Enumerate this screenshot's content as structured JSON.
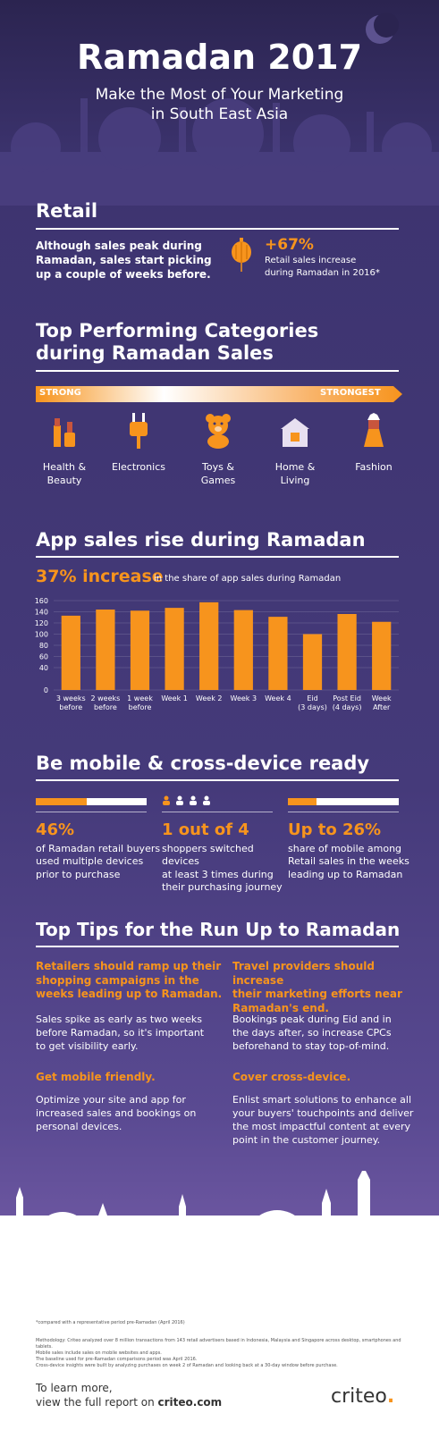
{
  "header": {
    "title": "Ramadan 2017",
    "subtitle_line1": "Make the Most of Your Marketing",
    "subtitle_line2": "in South East Asia"
  },
  "retail": {
    "title": "Retail",
    "text_line1": "Although sales peak during",
    "text_line2": "Ramadan, sales start picking",
    "text_line3": "up a couple of weeks before.",
    "stat": "+67%",
    "stat_line1": "Retail sales increase",
    "stat_line2": "during Ramadan in 2016*"
  },
  "categories": {
    "title_line1": "Top Performing Categories",
    "title_line2": "during Ramadan Sales",
    "scale_left": "STRONG",
    "scale_right": "STRONGEST",
    "items": [
      {
        "line1": "Health &",
        "line2": "Beauty",
        "icon": "lipstick-icon"
      },
      {
        "line1": "Electronics",
        "line2": "",
        "icon": "plug-icon"
      },
      {
        "line1": "Toys &",
        "line2": "Games",
        "icon": "teddy-bear-icon"
      },
      {
        "line1": "Home &",
        "line2": "Living",
        "icon": "house-icon"
      },
      {
        "line1": "Fashion",
        "line2": "",
        "icon": "dress-icon"
      }
    ]
  },
  "app_sales": {
    "title": "App sales rise during Ramadan",
    "highlight": "37% increase",
    "highlight_note": "in the share of app sales during Ramadan"
  },
  "chart_data": {
    "type": "bar",
    "title": "",
    "xlabel": "",
    "ylabel": "",
    "categories": [
      [
        "3 weeks",
        "before"
      ],
      [
        "2 weeks",
        "before"
      ],
      [
        "1 week",
        "before"
      ],
      [
        "Week 1",
        ""
      ],
      [
        "Week 2",
        ""
      ],
      [
        "Week 3",
        ""
      ],
      [
        "Week 4",
        ""
      ],
      [
        "Eid",
        "(3 days)"
      ],
      [
        "Post Eid",
        "(4 days)"
      ],
      [
        "Week",
        "After"
      ]
    ],
    "values": [
      133,
      144,
      142,
      147,
      157,
      143,
      131,
      100,
      136,
      122
    ],
    "yticks": [
      0,
      40,
      60,
      80,
      100,
      120,
      140,
      160
    ],
    "ylim": [
      0,
      160
    ],
    "color": "#f7941d"
  },
  "mobile": {
    "title": "Be mobile & cross-device ready",
    "stats": [
      {
        "big": "46%",
        "line1": "of Ramadan retail buyers",
        "line2": "used multiple devices",
        "line3": "prior to purchase"
      },
      {
        "big": "1 out of 4",
        "line1": "shoppers switched devices",
        "line2": "at least 3 times during",
        "line3": "their purchasing journey"
      },
      {
        "big": "Up to 26%",
        "line1": "share of mobile among",
        "line2": "Retail sales in the weeks",
        "line3": "leading up to Ramadan"
      }
    ]
  },
  "tips": {
    "title": "Top Tips for the Run Up to Ramadan",
    "t1_head": [
      "Retailers should ramp up their",
      "shopping campaigns in the",
      "weeks leading up to Ramadan."
    ],
    "t1_body": [
      "Sales spike as early as two weeks",
      "before Ramadan, so it's important",
      "to get visibility early."
    ],
    "t2_head": [
      "Travel providers should increase",
      "their marketing efforts near",
      "Ramadan's end."
    ],
    "t2_body": [
      "Bookings peak during Eid and in",
      "the days after, so increase CPCs",
      "beforehand to stay top-of-mind."
    ],
    "t3_head": [
      "Get mobile friendly."
    ],
    "t3_body": [
      "Optimize your site and app for",
      "increased sales and bookings on",
      "personal devices."
    ],
    "t4_head": [
      "Cover cross-device."
    ],
    "t4_body": [
      "Enlist smart solutions to enhance all",
      "your buyers' touchpoints and deliver",
      "the most impactful content at every",
      "point in the customer journey."
    ]
  },
  "footer": {
    "note1": "*compared with a representative period pre-Ramadan (April 2016)",
    "method1": "Methodology: Criteo analyzed over 8 million transactions from 143 retail advertisers based in Indonesia, Malaysia and Singapore across desktop, smartphones and tablets.",
    "method2": "Mobile sales include sales on mobile websites and apps.",
    "method3": "The baseline used for pre-Ramadan comparisons period was April 2016.",
    "method4": "Cross-device insights were built by analyzing purchases on week 2 of Ramadan and looking back at a 30-day window before purchase.",
    "cta_line1": "To learn more,",
    "cta_line2_prefix": "view the full report on ",
    "cta_link": "criteo.com",
    "brand": "criteo"
  }
}
